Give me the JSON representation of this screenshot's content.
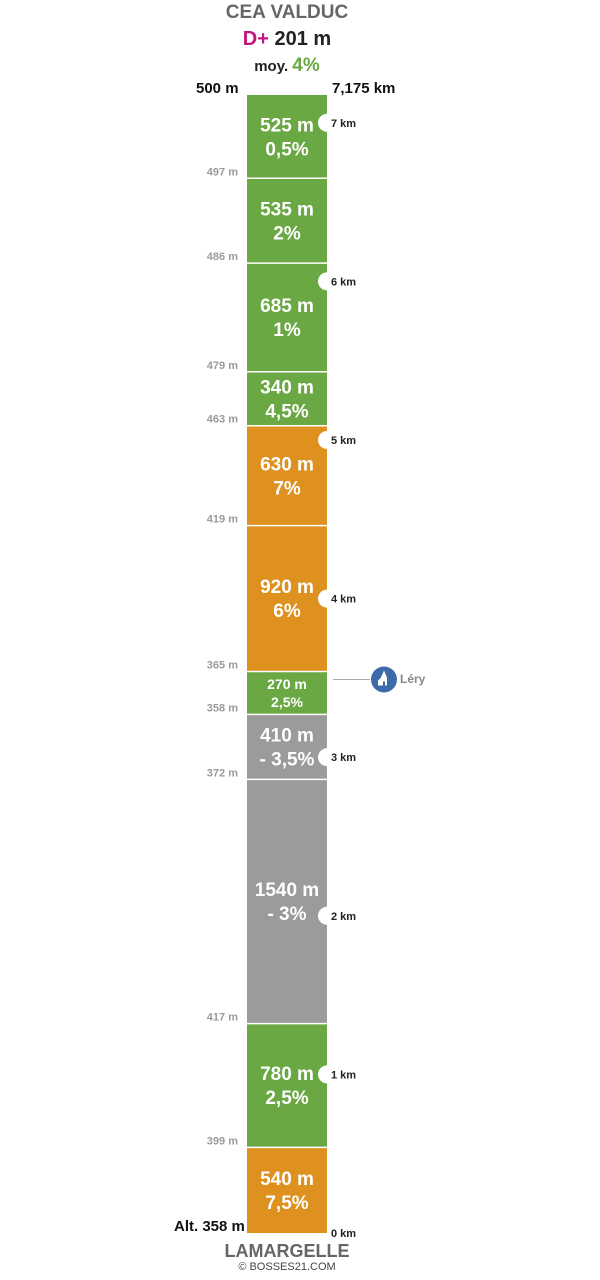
{
  "header": {
    "summit_name": "CEA VALDUC",
    "dplus_label": "D+",
    "dplus_value": "201 m",
    "avg_label": "moy.",
    "avg_value": "4%"
  },
  "top_altitude": "500 m",
  "total_distance": "7,175 km",
  "base_altitude": "Alt. 358 m",
  "base_name": "LAMARGELLE",
  "credit": "© BOSSES21.COM",
  "poi": {
    "name": "Léry",
    "icon": "church-icon"
  },
  "colors": {
    "climb_easy": "#6aa843",
    "climb_steep": "#de911f",
    "descent": "#9c9b9a",
    "poi": "#3d6aa8",
    "dplus": "#c2157d"
  },
  "chart_data": {
    "type": "bar",
    "orientation": "vertical-strip",
    "segments": [
      {
        "length": "540 m",
        "length_m": 540,
        "gradient": "7,5%",
        "category": "climb_steep"
      },
      {
        "length": "780 m",
        "length_m": 780,
        "gradient": "2,5%",
        "category": "climb_easy"
      },
      {
        "length": "1540 m",
        "length_m": 1540,
        "gradient": "- 3%",
        "category": "descent"
      },
      {
        "length": "410 m",
        "length_m": 410,
        "gradient": "- 3,5%",
        "category": "descent"
      },
      {
        "length": "270 m",
        "length_m": 270,
        "gradient": "2,5%",
        "category": "climb_easy"
      },
      {
        "length": "920 m",
        "length_m": 920,
        "gradient": "6%",
        "category": "climb_steep"
      },
      {
        "length": "630 m",
        "length_m": 630,
        "gradient": "7%",
        "category": "climb_steep"
      },
      {
        "length": "340 m",
        "length_m": 340,
        "gradient": "4,5%",
        "category": "climb_easy"
      },
      {
        "length": "685 m",
        "length_m": 685,
        "gradient": "1%",
        "category": "climb_easy"
      },
      {
        "length": "535 m",
        "length_m": 535,
        "gradient": "2%",
        "category": "climb_easy"
      },
      {
        "length": "525 m",
        "length_m": 525,
        "gradient": "0,5%",
        "category": "climb_easy"
      }
    ],
    "boundary_altitudes": [
      "399 m",
      "417 m",
      "372 m",
      "358 m",
      "365 m",
      "419 m",
      "463 m",
      "479 m",
      "486 m",
      "497 m"
    ],
    "km_markers": [
      {
        "km": 0,
        "label": "0 km"
      },
      {
        "km": 1,
        "label": "1 km"
      },
      {
        "km": 2,
        "label": "2 km"
      },
      {
        "km": 3,
        "label": "3 km"
      },
      {
        "km": 4,
        "label": "4 km"
      },
      {
        "km": 5,
        "label": "5 km"
      },
      {
        "km": 6,
        "label": "6 km"
      },
      {
        "km": 7,
        "label": "7 km"
      }
    ],
    "poi_distance_km": 3.49,
    "total_km": 7.175
  }
}
